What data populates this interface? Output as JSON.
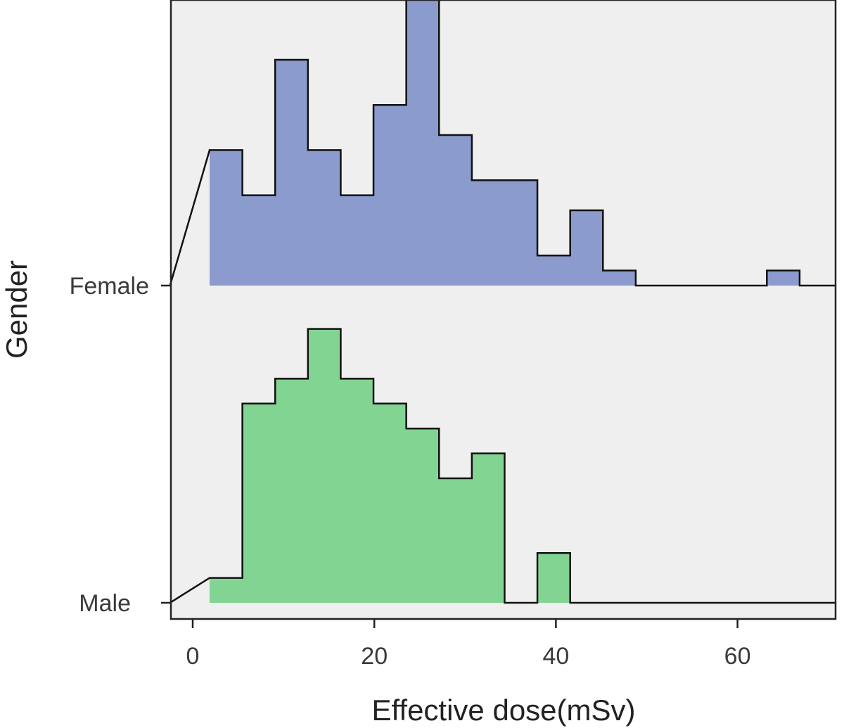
{
  "chart_data": {
    "type": "ridgeline-histogram",
    "xlabel": "Effective dose(mSv)",
    "ylabel": "Gender",
    "xlim": [
      -2.5,
      70.8
    ],
    "x_ticks": [
      "0",
      "20",
      "40",
      "60"
    ],
    "x_tick_values": [
      0,
      20,
      40,
      60
    ],
    "bin_start": 1.86,
    "bin_width": 3.61,
    "grid": false,
    "panel_background": "#efefef",
    "series": [
      {
        "name": "Female",
        "color": "#8b9bcd",
        "counts": [
          9,
          6,
          15,
          9,
          6,
          12,
          19,
          10,
          7,
          7,
          2,
          5,
          1,
          0,
          0,
          0,
          0,
          1
        ]
      },
      {
        "name": "Male",
        "color": "#82d493",
        "counts": [
          1,
          8,
          9,
          11,
          9,
          8,
          7,
          5,
          6,
          0,
          2
        ]
      }
    ]
  }
}
